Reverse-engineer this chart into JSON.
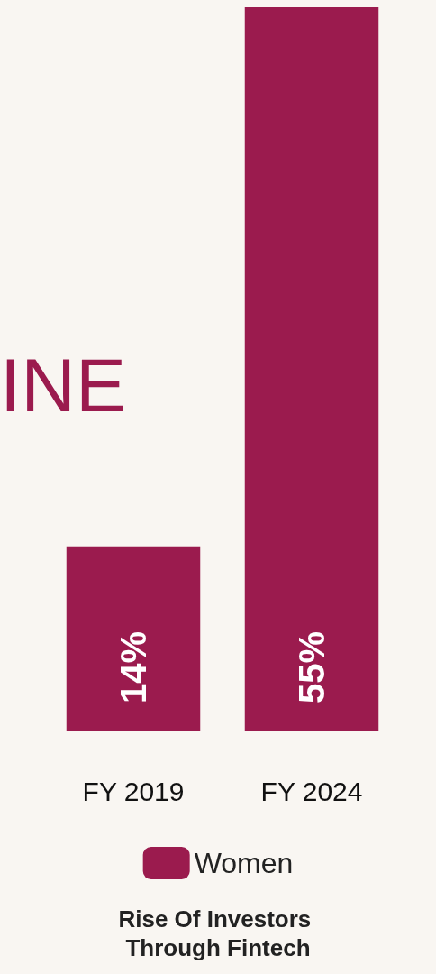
{
  "chart_data": {
    "type": "bar",
    "title": "Rise Of Investors Through Fintech",
    "annotations": [
      "INE"
    ],
    "categories": [
      "FY 2019",
      "FY 2024"
    ],
    "series": [
      {
        "name": "Women",
        "color": "#9b1b4e",
        "values": [
          14,
          55
        ],
        "value_labels": [
          "14%",
          "55%"
        ]
      }
    ],
    "legend": "bottom",
    "grid": false
  }
}
